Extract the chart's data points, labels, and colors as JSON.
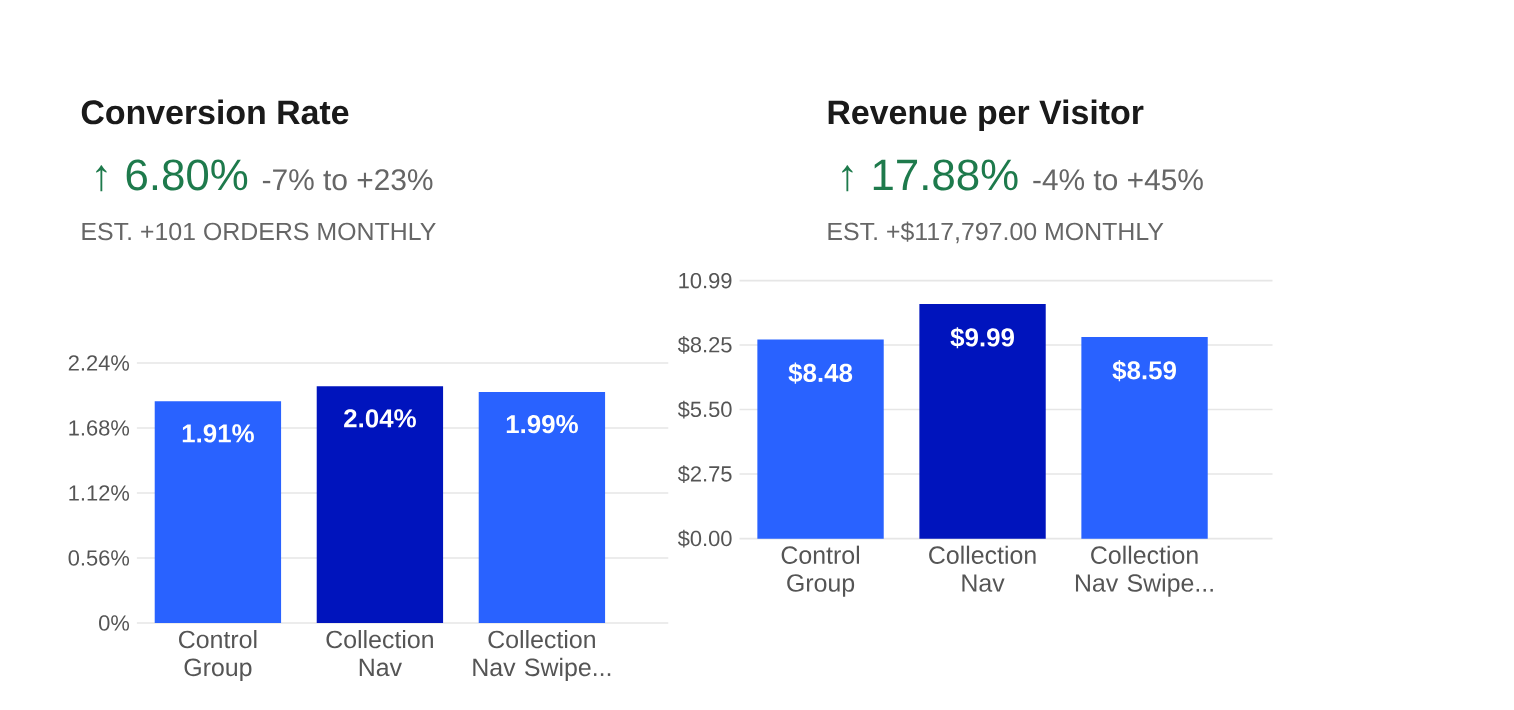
{
  "chart_data": [
    {
      "type": "bar",
      "title": "Conversion Rate",
      "subtitle": "↑ 6.80%",
      "annotations": [
        "-7% to +23%",
        "EST. +101 ORDERS MONTHLY"
      ],
      "categories": [
        "Control Group",
        "Collection Nav",
        "Collection Nav Swipe..."
      ],
      "values": [
        1.91,
        2.04,
        1.99
      ],
      "value_labels": [
        "1.91%",
        "2.04%",
        "1.99%"
      ],
      "colors": [
        "#2962ff",
        "#0014bd",
        "#2962ff"
      ],
      "ylim": [
        0,
        2.24
      ],
      "yticks": [
        {
          "value": 0,
          "label": "0%"
        },
        {
          "value": 0.56,
          "label": "0.56%"
        },
        {
          "value": 1.12,
          "label": "1.12%"
        },
        {
          "value": 1.68,
          "label": "1.68%"
        },
        {
          "value": 2.24,
          "label": "2.24%"
        }
      ],
      "grid": "y"
    },
    {
      "type": "bar",
      "title": "Revenue per Visitor",
      "subtitle": "↑ 17.88%",
      "annotations": [
        "-4% to +45%",
        "EST. +$117,797.00 MONTHLY"
      ],
      "categories": [
        "Control Group",
        "Collection Nav",
        "Collection Nav Swipe..."
      ],
      "values": [
        8.48,
        9.99,
        8.59
      ],
      "value_labels": [
        "$8.48",
        "$9.99",
        "$8.59"
      ],
      "colors": [
        "#2962ff",
        "#0014bd",
        "#2962ff"
      ],
      "ylim": [
        0,
        10.99
      ],
      "yticks": [
        {
          "value": 0,
          "label": "$0.00"
        },
        {
          "value": 2.75,
          "label": "$2.75"
        },
        {
          "value": 5.5,
          "label": "$5.50"
        },
        {
          "value": 8.25,
          "label": "$8.25"
        },
        10.99
      ],
      "grid": "y"
    }
  ]
}
